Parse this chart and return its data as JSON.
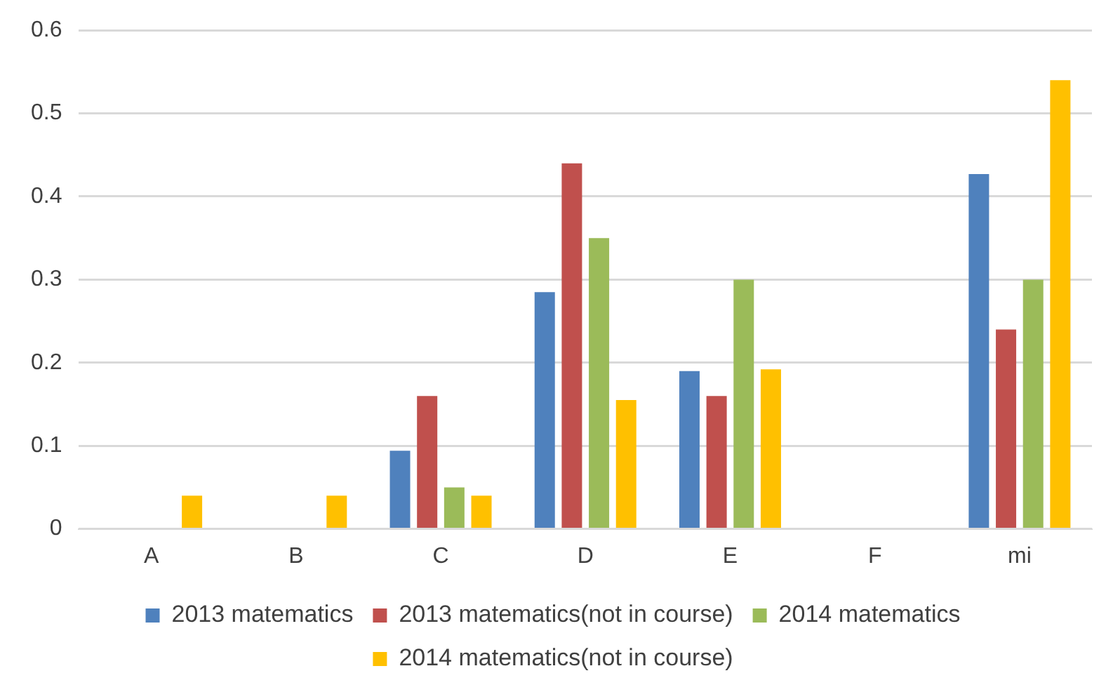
{
  "chart_data": {
    "type": "bar",
    "categories": [
      "A",
      "B",
      "C",
      "D",
      "E",
      "F",
      "mi"
    ],
    "series": [
      {
        "name": "2013 matematics",
        "color": "#4f81bd",
        "values": [
          0,
          0,
          0.094,
          0.285,
          0.19,
          0,
          0.427
        ]
      },
      {
        "name": "2013 matematics(not in course)",
        "color": "#c0504d",
        "values": [
          0,
          0,
          0.16,
          0.44,
          0.16,
          0,
          0.24
        ]
      },
      {
        "name": "2014 matematics",
        "color": "#9bbb59",
        "values": [
          0,
          0,
          0.05,
          0.35,
          0.3,
          0,
          0.3
        ]
      },
      {
        "name": "2014 matematics(not in course)",
        "color": "#ffc000",
        "values": [
          0.04,
          0.04,
          0.04,
          0.155,
          0.192,
          0,
          0.54
        ]
      }
    ],
    "ylim": [
      0,
      0.6
    ],
    "yticks": [
      0,
      0.1,
      0.2,
      0.3,
      0.4,
      0.5,
      0.6
    ],
    "grid": "y",
    "legend": "bottom"
  }
}
